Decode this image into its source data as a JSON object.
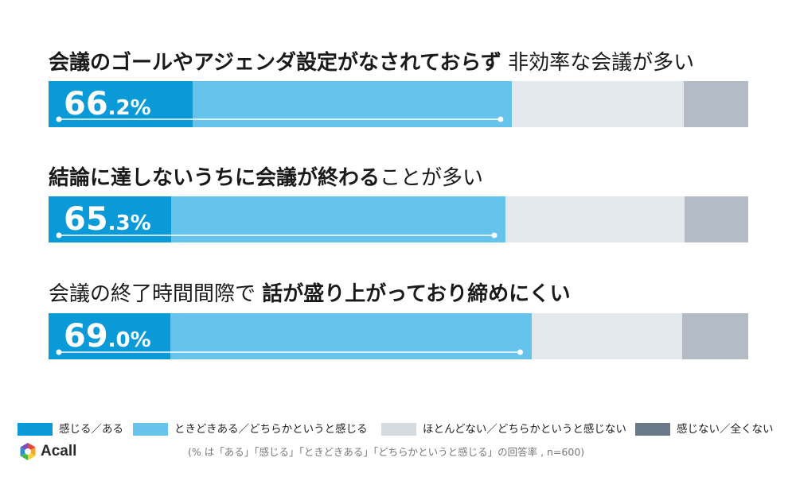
{
  "chart_data": {
    "type": "bar",
    "stacked": true,
    "orientation": "horizontal",
    "categories": [
      {
        "bold": "会議のゴールやアジェンダ設定がなされておらず",
        "normal": " 非効率な会議が多い"
      },
      {
        "bold": "結論に達しないうちに会議が終わる",
        "normal": "ことが多い"
      },
      {
        "bold": "",
        "normal": "会議の終了時間間際で ",
        "bold2": "話が盛り上がっており締めにくい"
      }
    ],
    "totals": [
      {
        "big": "66",
        "small": ".2%"
      },
      {
        "big": "65",
        "small": ".3%"
      },
      {
        "big": "69",
        "small": ".0%"
      }
    ],
    "series": [
      {
        "name": "感じる／ある",
        "color": "#0a9ad8",
        "values": [
          20.6,
          17.5,
          17.4
        ]
      },
      {
        "name": "ときどきある／どちらかというと感じる",
        "color": "#66c3ec",
        "values": [
          45.6,
          47.8,
          51.6
        ]
      },
      {
        "name": "ほとんどない／どちらかというと感じない",
        "color": "#e3e8ec",
        "values": [
          24.6,
          25.6,
          21.6
        ]
      },
      {
        "name": "感じない／全くない",
        "color": "#b3bcc4",
        "values": [
          9.2,
          9.1,
          9.4
        ]
      }
    ],
    "legend_swatch_colors": [
      "#0a9ad8",
      "#66c3ec",
      "#d6dbe0",
      "#6a7a8a"
    ],
    "xlim": [
      0,
      100
    ],
    "legend": "bottom"
  },
  "footnote": "(% は「ある」「感じる」「ときどきある」「どちらかというと感じる」の回答率 , n=600)",
  "logo": {
    "text": "Acall",
    "icon": "acall-logo-icon"
  }
}
